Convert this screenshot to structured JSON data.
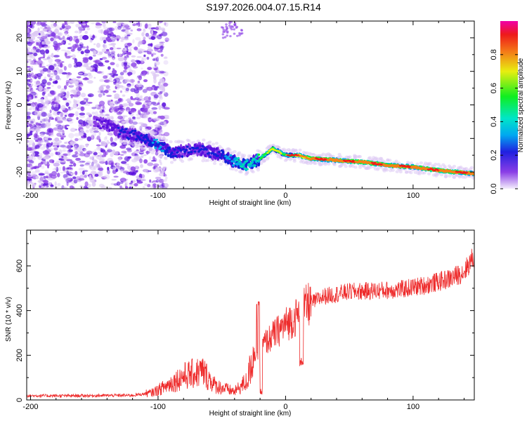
{
  "figure_title": "S197.2026.004.07.15.R14",
  "colors": {
    "snr_line": "#ee2b2b",
    "spectrogram_cmap": [
      "#ffffff",
      "#dcc8f4",
      "#8a3ee6",
      "#5a10dd",
      "#1020d8",
      "#00a8e8",
      "#00e0b0",
      "#18ee30",
      "#ecec10",
      "#f48018",
      "#ee1a1a",
      "#f000a8"
    ]
  },
  "chart_data": [
    {
      "type": "heatmap",
      "title": "",
      "xlabel": "Height of straight line (km)",
      "ylabel": "Frequency (Hz)",
      "xlim": [
        -203,
        148
      ],
      "ylim": [
        -25,
        25
      ],
      "xticks": [
        -200,
        -100,
        0,
        100
      ],
      "yticks": [
        -20,
        -10,
        0,
        10,
        20
      ],
      "colorbar": {
        "label": "Normalized spectral amplitude",
        "range": [
          0,
          1
        ],
        "ticks": [
          "0.0",
          "0.2",
          "0.4",
          "0.6",
          "0.8"
        ]
      },
      "ridge": {
        "description": "Dominant frequency trace (Hz) vs height (km)",
        "x": [
          -150,
          -140,
          -130,
          -120,
          -110,
          -100,
          -90,
          -80,
          -70,
          -60,
          -50,
          -40,
          -30,
          -20,
          -10,
          0,
          10,
          20,
          40,
          60,
          80,
          100,
          120,
          148
        ],
        "y": [
          -5,
          -6,
          -8,
          -9,
          -10,
          -12,
          -14,
          -14,
          -13,
          -14,
          -15,
          -17,
          -18,
          -16,
          -13,
          -15,
          -15,
          -16,
          -16.5,
          -17,
          -18,
          -18.5,
          -19.5,
          -20.5
        ],
        "amplitude": [
          0.2,
          0.25,
          0.3,
          0.3,
          0.35,
          0.4,
          0.35,
          0.3,
          0.3,
          0.3,
          0.35,
          0.45,
          0.5,
          0.55,
          0.7,
          0.6,
          0.8,
          0.85,
          0.9,
          0.92,
          0.9,
          0.9,
          0.92,
          0.9
        ]
      }
    },
    {
      "type": "line",
      "title": "",
      "xlabel": "Height of straight line (km)",
      "ylabel": "SNR (10 * v/v)",
      "xlim": [
        -203,
        148
      ],
      "ylim": [
        0,
        760
      ],
      "xticks": [
        -200,
        -100,
        0,
        100
      ],
      "yticks": [
        0,
        200,
        400,
        600
      ],
      "series": [
        {
          "name": "SNR",
          "envelope_x": [
            -203,
            -170,
            -120,
            -105,
            -95,
            -80,
            -65,
            -55,
            -40,
            -30,
            -25,
            -21,
            -18,
            -10,
            0,
            10,
            20,
            30,
            50,
            70,
            90,
            110,
            130,
            140,
            148
          ],
          "envelope_y": [
            18,
            18,
            20,
            30,
            55,
            100,
            120,
            60,
            35,
            80,
            200,
            230,
            240,
            280,
            330,
            370,
            430,
            460,
            480,
            485,
            490,
            510,
            540,
            570,
            640
          ]
        }
      ]
    }
  ]
}
